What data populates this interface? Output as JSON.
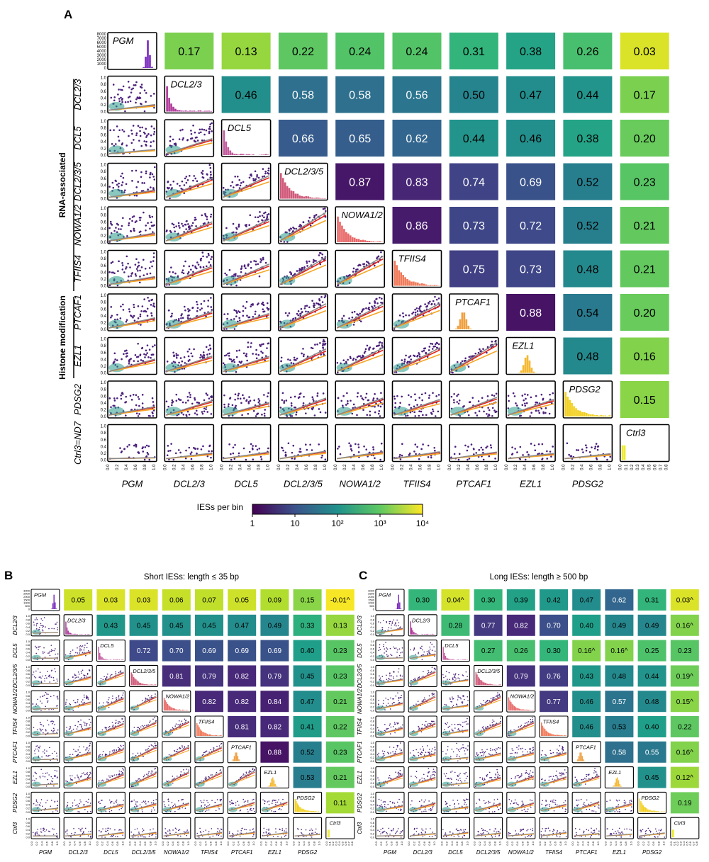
{
  "panel_letters": {
    "A": "A",
    "B": "B",
    "C": "C"
  },
  "labels": [
    "PGM",
    "DCL2/3",
    "DCL5",
    "DCL2/3/5",
    "NOWA1/2",
    "TFIIS4",
    "PTCAF1",
    "EZL1",
    "PDSG2",
    "Ctrl3"
  ],
  "row_label_last_A": "Ctrl3=ND7",
  "row_label_last_BC": "Ctrl3",
  "group_labels": {
    "rna": "RNA-associated",
    "histone": "Histone modification"
  },
  "tick_labels": {
    "diag_y_A": [
      "8000",
      "7000",
      "6000",
      "5000",
      "4000",
      "3000",
      "2000",
      "1000",
      "0"
    ],
    "diag_y_BC": [
      "3000",
      "2500",
      "2000",
      "1500",
      "1000",
      "500",
      "0"
    ],
    "scatter_y": [
      "1.0",
      "0.8",
      "0.6",
      "0.4",
      "0.2",
      "0.0"
    ],
    "x_axis": [
      "0.0",
      "0.2",
      "0.4",
      "0.6",
      "0.8",
      "1.0"
    ],
    "x_axis_last": [
      "0.0",
      "0.1",
      "0.2",
      "0.3",
      "0.4",
      "0.5",
      "0.6",
      "0.7",
      "0.8"
    ]
  },
  "colorbar": {
    "title": "IESs per bin",
    "ticks": [
      "1",
      "10",
      "10²",
      "10³",
      "10⁴"
    ]
  },
  "chart_data": [
    {
      "type": "heatmap",
      "panel": "A",
      "title": "",
      "variables": [
        "PGM",
        "DCL2/3",
        "DCL5",
        "DCL2/3/5",
        "NOWA1/2",
        "TFIIS4",
        "PTCAF1",
        "EZL1",
        "PDSG2",
        "Ctrl3"
      ],
      "correlations": [
        [
          "",
          "0.17",
          "0.13",
          "0.22",
          "0.24",
          "0.24",
          "0.31",
          "0.38",
          "0.26",
          "0.03"
        ],
        [
          "",
          "",
          "0.46",
          "0.58",
          "0.58",
          "0.56",
          "0.50",
          "0.47",
          "0.44",
          "0.17"
        ],
        [
          "",
          "",
          "",
          "0.66",
          "0.65",
          "0.62",
          "0.44",
          "0.46",
          "0.38",
          "0.20"
        ],
        [
          "",
          "",
          "",
          "",
          "0.87",
          "0.83",
          "0.74",
          "0.69",
          "0.52",
          "0.23"
        ],
        [
          "",
          "",
          "",
          "",
          "",
          "0.86",
          "0.73",
          "0.72",
          "0.52",
          "0.21"
        ],
        [
          "",
          "",
          "",
          "",
          "",
          "",
          "0.75",
          "0.73",
          "0.48",
          "0.21"
        ],
        [
          "",
          "",
          "",
          "",
          "",
          "",
          "",
          "0.88",
          "0.54",
          "0.20"
        ],
        [
          "",
          "",
          "",
          "",
          "",
          "",
          "",
          "",
          "0.48",
          "0.16"
        ],
        [
          "",
          "",
          "",
          "",
          "",
          "",
          "",
          "",
          "",
          "0.15"
        ],
        [
          "",
          "",
          "",
          "",
          "",
          "",
          "",
          "",
          "",
          ""
        ]
      ],
      "color_scale": "viridis",
      "scatter_axis_range": [
        0,
        1
      ]
    },
    {
      "type": "heatmap",
      "panel": "B",
      "title": "Short IESs: length ≤ 35 bp",
      "variables": [
        "PGM",
        "DCL2/3",
        "DCL5",
        "DCL2/3/5",
        "NOWA1/2",
        "TFIIS4",
        "PTCAF1",
        "EZL1",
        "PDSG2",
        "Ctrl3"
      ],
      "correlations": [
        [
          "",
          "0.05",
          "0.03",
          "0.03",
          "0.06",
          "0.07",
          "0.05",
          "0.09",
          "0.15",
          "-0.01^"
        ],
        [
          "",
          "",
          "0.43",
          "0.45",
          "0.45",
          "0.45",
          "0.47",
          "0.49",
          "0.33",
          "0.13"
        ],
        [
          "",
          "",
          "",
          "0.72",
          "0.70",
          "0.69",
          "0.69",
          "0.69",
          "0.40",
          "0.23"
        ],
        [
          "",
          "",
          "",
          "",
          "0.81",
          "0.79",
          "0.82",
          "0.79",
          "0.45",
          "0.23"
        ],
        [
          "",
          "",
          "",
          "",
          "",
          "0.82",
          "0.82",
          "0.84",
          "0.47",
          "0.21"
        ],
        [
          "",
          "",
          "",
          "",
          "",
          "",
          "0.81",
          "0.82",
          "0.41",
          "0.22"
        ],
        [
          "",
          "",
          "",
          "",
          "",
          "",
          "",
          "0.88",
          "0.52",
          "0.23"
        ],
        [
          "",
          "",
          "",
          "",
          "",
          "",
          "",
          "",
          "0.53",
          "0.21"
        ],
        [
          "",
          "",
          "",
          "",
          "",
          "",
          "",
          "",
          "",
          "0.11"
        ],
        [
          "",
          "",
          "",
          "",
          "",
          "",
          "",
          "",
          "",
          ""
        ]
      ],
      "color_scale": "viridis"
    },
    {
      "type": "heatmap",
      "panel": "C",
      "title": "Long IESs: length ≥ 500 bp",
      "variables": [
        "PGM",
        "DCL2/3",
        "DCL5",
        "DCL2/3/5",
        "NOWA1/2",
        "TFIIS4",
        "PTCAF1",
        "EZL1",
        "PDSG2",
        "Ctrl3"
      ],
      "correlations": [
        [
          "",
          "0.30",
          "0.04^",
          "0.30",
          "0.39",
          "0.42",
          "0.47",
          "0.62",
          "0.31",
          "0.03^"
        ],
        [
          "",
          "",
          "0.28",
          "0.77",
          "0.82",
          "0.70",
          "0.40",
          "0.49",
          "0.49",
          "0.16^"
        ],
        [
          "",
          "",
          "",
          "0.27",
          "0.26",
          "0.30",
          "0.16^",
          "0.16^",
          "0.25",
          "0.23"
        ],
        [
          "",
          "",
          "",
          "",
          "0.79",
          "0.76",
          "0.43",
          "0.48",
          "0.44",
          "0.19^"
        ],
        [
          "",
          "",
          "",
          "",
          "",
          "0.77",
          "0.46",
          "0.57",
          "0.48",
          "0.15^"
        ],
        [
          "",
          "",
          "",
          "",
          "",
          "",
          "0.46",
          "0.53",
          "0.40",
          "0.22"
        ],
        [
          "",
          "",
          "",
          "",
          "",
          "",
          "",
          "0.58",
          "0.55",
          "0.16^"
        ],
        [
          "",
          "",
          "",
          "",
          "",
          "",
          "",
          "",
          "0.45",
          "0.12^"
        ],
        [
          "",
          "",
          "",
          "",
          "",
          "",
          "",
          "",
          "",
          "0.19"
        ],
        [
          "",
          "",
          "",
          "",
          "",
          "",
          "",
          "",
          "",
          ""
        ]
      ],
      "color_scale": "viridis"
    }
  ],
  "colors": {
    "scatter_point": "#4a1f7a",
    "density_core": "#2a9a8a",
    "fit_red": "#e5231b",
    "fit_orange": "#f5a623",
    "fit_gray": "#8a8a8a",
    "hist": [
      "#7b2cbf",
      "#b03a9a",
      "#c45a9e",
      "#d05a7a",
      "#e86a6a",
      "#f07a5a",
      "#f0a040",
      "#f5b830",
      "#f2d020",
      "#ecea30"
    ]
  }
}
